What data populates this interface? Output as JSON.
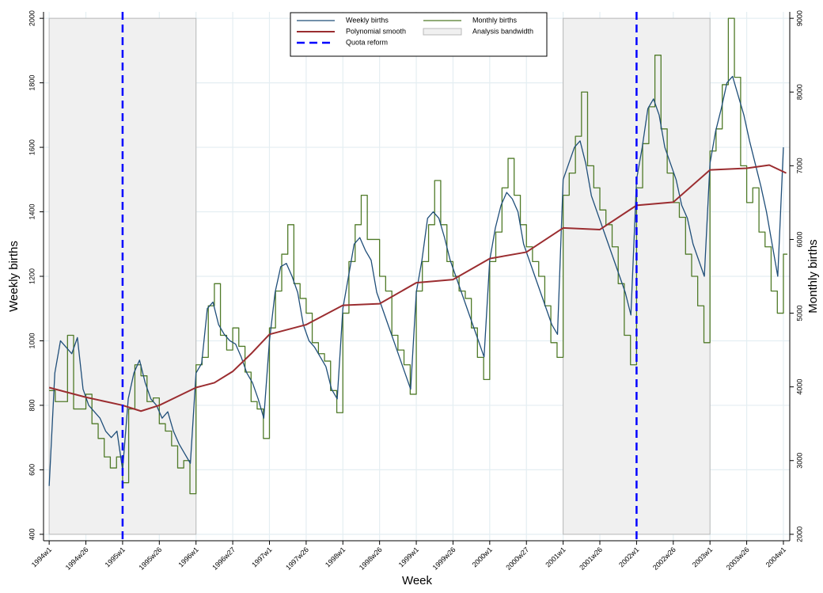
{
  "chart_data": {
    "type": "line",
    "x_label": "Week",
    "y_label": "Weekly births",
    "y2_label": "Monthly births",
    "xlim": [
      -4,
      524.5
    ],
    "ylim": [
      380,
      2020
    ],
    "y2lim": [
      1912.5,
      9087.5
    ],
    "grid": true,
    "legend": "top",
    "xticks": [
      {
        "value": 0,
        "label": "1994w1"
      },
      {
        "value": 26,
        "label": "1994w26"
      },
      {
        "value": 52,
        "label": "1995w1"
      },
      {
        "value": 78,
        "label": "1995w26"
      },
      {
        "value": 104,
        "label": "1996w1"
      },
      {
        "value": 130,
        "label": "1996w27"
      },
      {
        "value": 156,
        "label": "1997w1"
      },
      {
        "value": 182,
        "label": "1997w26"
      },
      {
        "value": 208,
        "label": "1998w1"
      },
      {
        "value": 234,
        "label": "1998w26"
      },
      {
        "value": 260,
        "label": "1999w1"
      },
      {
        "value": 286,
        "label": "1999w26"
      },
      {
        "value": 312,
        "label": "2000w1"
      },
      {
        "value": 338,
        "label": "2000w27"
      },
      {
        "value": 364,
        "label": "2001w1"
      },
      {
        "value": 390,
        "label": "2001w26"
      },
      {
        "value": 416,
        "label": "2002w1"
      },
      {
        "value": 442,
        "label": "2002w26"
      },
      {
        "value": 468,
        "label": "2003w1"
      },
      {
        "value": 494,
        "label": "2003w26"
      },
      {
        "value": 520,
        "label": "2004w1"
      }
    ],
    "yticks": [
      400,
      600,
      800,
      1000,
      1200,
      1400,
      1600,
      1800,
      2000
    ],
    "y2ticks": [
      2000,
      3000,
      4000,
      5000,
      6000,
      7000,
      8000,
      9000
    ],
    "series": [
      {
        "name": "Weekly births",
        "color": "#1f4e79",
        "width": 1.3,
        "x": [
          0,
          4,
          8,
          12,
          16,
          20,
          24,
          28,
          32,
          36,
          40,
          44,
          48,
          52,
          56,
          60,
          64,
          68,
          72,
          76,
          80,
          84,
          88,
          92,
          96,
          100,
          104,
          108,
          112,
          116,
          120,
          124,
          128,
          132,
          136,
          140,
          144,
          148,
          152,
          156,
          160,
          164,
          168,
          172,
          176,
          180,
          184,
          188,
          192,
          196,
          200,
          204,
          208,
          212,
          216,
          220,
          224,
          228,
          232,
          236,
          240,
          244,
          248,
          252,
          256,
          260,
          264,
          268,
          272,
          276,
          280,
          284,
          288,
          292,
          296,
          300,
          304,
          308,
          312,
          316,
          320,
          324,
          328,
          332,
          336,
          340,
          344,
          348,
          352,
          356,
          360,
          364,
          368,
          372,
          376,
          380,
          384,
          388,
          392,
          396,
          400,
          404,
          408,
          412,
          416,
          420,
          424,
          428,
          432,
          436,
          440,
          444,
          448,
          452,
          456,
          460,
          464,
          468,
          472,
          476,
          480,
          484,
          488,
          492,
          496,
          500,
          504,
          508,
          512,
          516,
          520
        ],
        "values": [
          550,
          900,
          1000,
          980,
          960,
          1010,
          850,
          800,
          780,
          760,
          720,
          700,
          720,
          600,
          820,
          900,
          940,
          870,
          820,
          800,
          760,
          780,
          720,
          680,
          650,
          620,
          900,
          930,
          1100,
          1120,
          1050,
          1020,
          1000,
          990,
          950,
          900,
          870,
          820,
          760,
          1000,
          1150,
          1230,
          1240,
          1200,
          1150,
          1050,
          1000,
          980,
          950,
          920,
          850,
          820,
          1100,
          1200,
          1300,
          1320,
          1280,
          1250,
          1150,
          1100,
          1050,
          1000,
          950,
          900,
          850,
          1150,
          1250,
          1380,
          1400,
          1380,
          1320,
          1250,
          1200,
          1150,
          1100,
          1050,
          1000,
          950,
          1250,
          1350,
          1420,
          1460,
          1440,
          1400,
          1300,
          1250,
          1200,
          1150,
          1100,
          1050,
          1020,
          1500,
          1550,
          1600,
          1620,
          1550,
          1450,
          1400,
          1350,
          1300,
          1250,
          1200,
          1150,
          1080,
          1500,
          1600,
          1720,
          1750,
          1700,
          1600,
          1550,
          1500,
          1420,
          1380,
          1300,
          1250,
          1200,
          1550,
          1650,
          1720,
          1800,
          1820,
          1760,
          1700,
          1620,
          1550,
          1480,
          1400,
          1300,
          1200,
          1600
        ]
      },
      {
        "name": "Monthly births",
        "color": "#4f7a28",
        "width": 1.3,
        "axis": "y2",
        "step": true,
        "x": [
          0,
          4.3,
          8.7,
          13,
          17.3,
          21.7,
          26,
          30.3,
          34.7,
          39,
          43.3,
          47.7,
          52,
          56.3,
          60.7,
          65,
          69.3,
          73.7,
          78,
          82.3,
          86.7,
          91,
          95.3,
          99.7,
          104,
          108.3,
          112.7,
          117,
          121.3,
          125.7,
          130,
          134.3,
          138.7,
          143,
          147.3,
          151.7,
          156,
          160.3,
          164.7,
          169,
          173.3,
          177.7,
          182,
          186.3,
          190.7,
          195,
          199.3,
          203.7,
          208,
          212.3,
          216.7,
          221,
          225.3,
          229.7,
          234,
          238.3,
          242.7,
          247,
          251.3,
          255.7,
          260,
          264.3,
          268.7,
          273,
          277.3,
          281.7,
          286,
          290.3,
          294.7,
          299,
          303.3,
          307.7,
          312,
          316.3,
          320.7,
          325,
          329.3,
          333.7,
          338,
          342.3,
          346.7,
          351,
          355.3,
          359.7,
          364,
          368.3,
          372.7,
          377,
          381.3,
          385.7,
          390,
          394.3,
          398.7,
          403,
          407.3,
          411.7,
          416,
          420.3,
          424.7,
          429,
          433.3,
          437.7,
          442,
          446.3,
          450.7,
          455,
          459.3,
          463.7,
          468,
          472.3,
          476.7,
          481,
          485.3,
          489.7,
          494,
          498.3,
          502.7,
          507,
          511.3,
          515.7,
          520
        ],
        "values": [
          3950,
          3800,
          3800,
          4700,
          3700,
          3700,
          3900,
          3500,
          3300,
          3050,
          2900,
          3050,
          2700,
          3700,
          4300,
          4150,
          3800,
          3850,
          3500,
          3400,
          3200,
          2900,
          3000,
          2550,
          4300,
          4400,
          5100,
          5400,
          4700,
          4500,
          4800,
          4550,
          4200,
          3800,
          3700,
          3300,
          4800,
          5300,
          5800,
          6200,
          5400,
          5200,
          5000,
          4600,
          4450,
          4350,
          3950,
          3650,
          5000,
          5700,
          6200,
          6600,
          6000,
          6000,
          5500,
          5300,
          4700,
          4500,
          4300,
          3900,
          5300,
          5700,
          6200,
          6800,
          6200,
          5700,
          5500,
          5300,
          5200,
          4800,
          4400,
          4100,
          5700,
          6100,
          6700,
          7100,
          6600,
          6200,
          5900,
          5700,
          5500,
          5100,
          4600,
          4400,
          6600,
          6900,
          7400,
          8000,
          7000,
          6700,
          6400,
          6200,
          5900,
          5400,
          4700,
          4300,
          6700,
          7300,
          7800,
          8500,
          7500,
          6900,
          6500,
          6300,
          5800,
          5500,
          5100,
          4600,
          7200,
          7500,
          8100,
          9000,
          8200,
          7000,
          6500,
          6700,
          6100,
          5900,
          5300,
          5000,
          5800
        ]
      },
      {
        "name": "Polynomial smooth",
        "color": "#9b2d30",
        "width": 2,
        "x": [
          0,
          26,
          52,
          65,
          78,
          104,
          117,
          130,
          143,
          156,
          182,
          208,
          234,
          260,
          286,
          312,
          338,
          364,
          390,
          416,
          442,
          468,
          494,
          510,
          522
        ],
        "values": [
          855,
          825,
          800,
          782,
          800,
          855,
          870,
          905,
          960,
          1020,
          1050,
          1110,
          1115,
          1180,
          1190,
          1255,
          1275,
          1350,
          1345,
          1420,
          1430,
          1530,
          1535,
          1545,
          1520
        ]
      }
    ],
    "bands": {
      "name": "Analysis bandwidth",
      "color": "#f0f0f0",
      "items": [
        {
          "x": [
            0,
            104
          ],
          "y": [
            400,
            2000
          ]
        },
        {
          "x": [
            364,
            468
          ],
          "y": [
            400,
            2000
          ]
        }
      ]
    },
    "reference_lines": {
      "name": "Quota reform",
      "color": "#0000ff",
      "x": [
        52,
        416
      ]
    }
  }
}
